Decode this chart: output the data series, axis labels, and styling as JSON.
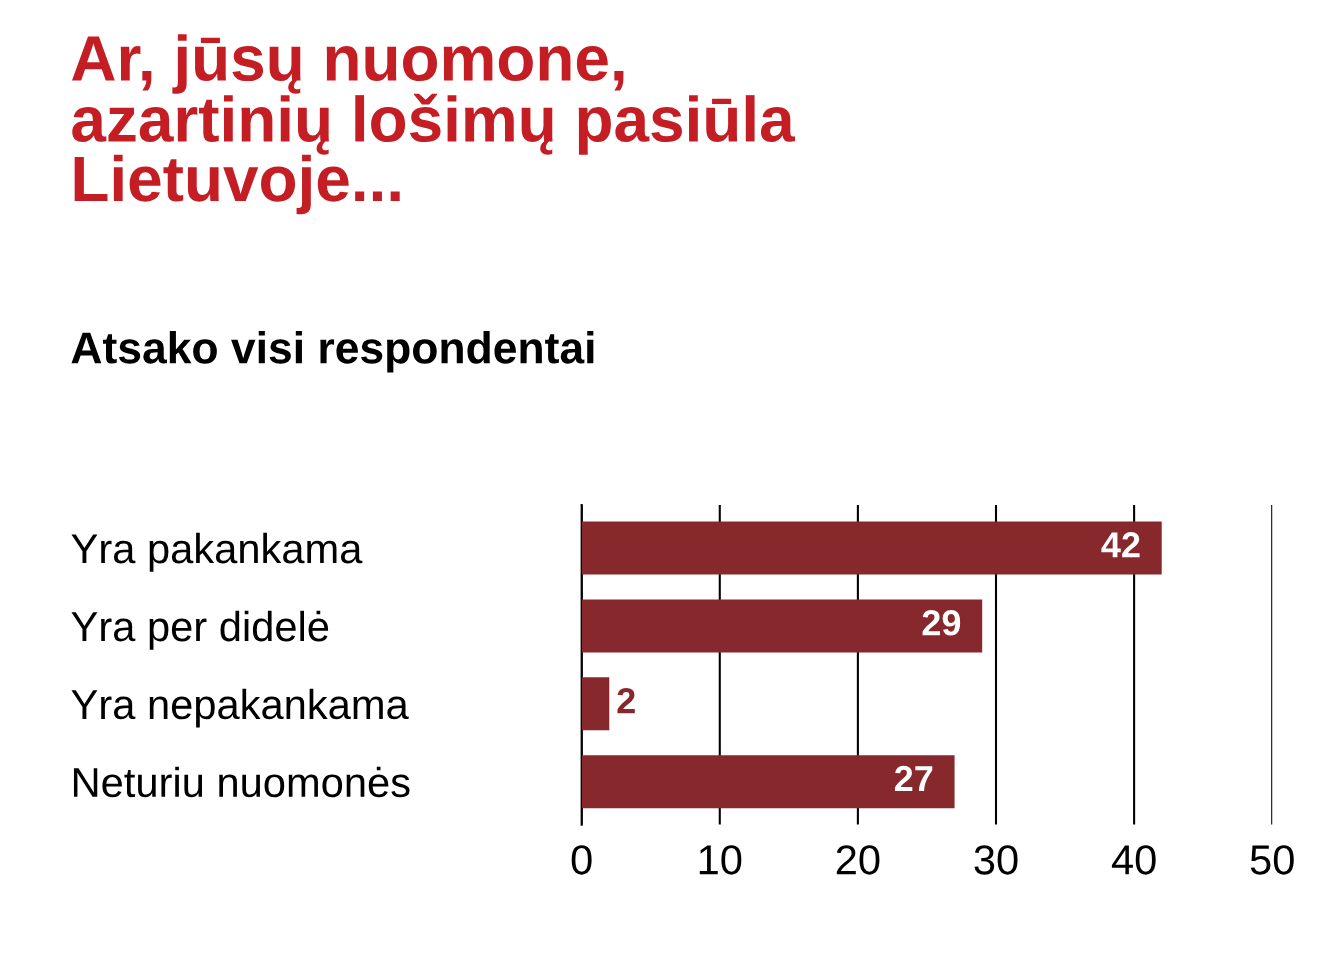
{
  "chart_data": {
    "type": "bar",
    "orientation": "horizontal",
    "title": "Ar, jūsų nuomone,\nazartinių lošimų pasiūla\nLietuvoje...",
    "subtitle": "Atsako visi respondentai",
    "categories": [
      "Yra pakankama",
      "Yra per didelė",
      "Yra nepakankama",
      "Neturiu nuomonės"
    ],
    "values": [
      42,
      29,
      2,
      27
    ],
    "color": "#87292c",
    "xlim": [
      0,
      50
    ],
    "xticks": [
      0,
      10,
      20,
      30,
      40,
      50
    ],
    "grid": "x",
    "data_labels": true,
    "legend": false
  }
}
